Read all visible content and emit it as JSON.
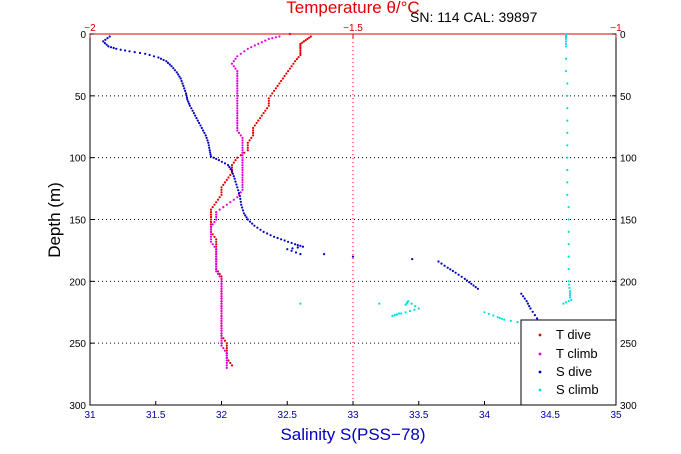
{
  "chart_data": {
    "type": "scatter",
    "title": "Temperature θ/°C",
    "subtitle": "SN: 114  CAL: 39897",
    "xlabel": "Salinity S(PSS−78)",
    "ylabel": "Depth (m)",
    "xlim": [
      31,
      35
    ],
    "x2lim": [
      -2,
      -1
    ],
    "ylim": [
      300,
      0
    ],
    "xticks": [
      31,
      31.5,
      32,
      32.5,
      33,
      33.5,
      34,
      34.5,
      35
    ],
    "xtick_labels": [
      "31",
      "31.5",
      "32",
      "32.5",
      "33",
      "33.5",
      "34",
      "34.5",
      "35"
    ],
    "x2ticks": [
      -2,
      -1.5,
      -1
    ],
    "x2tick_labels": [
      "−2",
      "−1.5",
      "−1"
    ],
    "yticks": [
      0,
      50,
      100,
      150,
      200,
      250,
      300
    ],
    "ytick_labels": [
      "0",
      "50",
      "100",
      "150",
      "200",
      "250",
      "300"
    ],
    "grid": "dotted at x=33 and y ticks",
    "legend_position": "bottom-right",
    "series": [
      {
        "name": "T dive",
        "axis": "temperature",
        "color": "#e00000",
        "points": [
          [
            -1.62,
            0
          ],
          [
            -1.58,
            2
          ],
          [
            -1.59,
            5
          ],
          [
            -1.6,
            8
          ],
          [
            -1.6,
            12
          ],
          [
            -1.6,
            17
          ],
          [
            -1.61,
            22
          ],
          [
            -1.62,
            28
          ],
          [
            -1.63,
            34
          ],
          [
            -1.64,
            40
          ],
          [
            -1.65,
            46
          ],
          [
            -1.66,
            52
          ],
          [
            -1.66,
            58
          ],
          [
            -1.67,
            64
          ],
          [
            -1.68,
            70
          ],
          [
            -1.69,
            76
          ],
          [
            -1.69,
            82
          ],
          [
            -1.7,
            88
          ],
          [
            -1.7,
            94
          ],
          [
            -1.72,
            100
          ],
          [
            -1.73,
            106
          ],
          [
            -1.73,
            112
          ],
          [
            -1.74,
            118
          ],
          [
            -1.75,
            124
          ],
          [
            -1.75,
            130
          ],
          [
            -1.76,
            136
          ],
          [
            -1.77,
            142
          ],
          [
            -1.77,
            148
          ],
          [
            -1.77,
            154
          ],
          [
            -1.77,
            160
          ],
          [
            -1.76,
            166
          ],
          [
            -1.76,
            172
          ],
          [
            -1.76,
            178
          ],
          [
            -1.76,
            184
          ],
          [
            -1.76,
            190
          ],
          [
            -1.75,
            196
          ],
          [
            -1.75,
            202
          ],
          [
            -1.75,
            208
          ],
          [
            -1.75,
            214
          ],
          [
            -1.75,
            220
          ],
          [
            -1.75,
            226
          ],
          [
            -1.75,
            232
          ],
          [
            -1.75,
            238
          ],
          [
            -1.75,
            244
          ],
          [
            -1.74,
            250
          ],
          [
            -1.74,
            256
          ],
          [
            -1.74,
            262
          ],
          [
            -1.73,
            268
          ]
        ]
      },
      {
        "name": "T climb",
        "axis": "temperature",
        "color": "#e000e0",
        "points": [
          [
            -1.74,
            270
          ],
          [
            -1.74,
            264
          ],
          [
            -1.74,
            258
          ],
          [
            -1.75,
            252
          ],
          [
            -1.75,
            246
          ],
          [
            -1.75,
            240
          ],
          [
            -1.75,
            234
          ],
          [
            -1.75,
            228
          ],
          [
            -1.75,
            222
          ],
          [
            -1.75,
            216
          ],
          [
            -1.75,
            210
          ],
          [
            -1.75,
            204
          ],
          [
            -1.75,
            198
          ],
          [
            -1.76,
            192
          ],
          [
            -1.76,
            186
          ],
          [
            -1.76,
            180
          ],
          [
            -1.76,
            174
          ],
          [
            -1.77,
            168
          ],
          [
            -1.77,
            162
          ],
          [
            -1.77,
            156
          ],
          [
            -1.76,
            150
          ],
          [
            -1.76,
            144
          ],
          [
            -1.74,
            138
          ],
          [
            -1.72,
            132
          ],
          [
            -1.71,
            126
          ],
          [
            -1.71,
            120
          ],
          [
            -1.71,
            114
          ],
          [
            -1.71,
            108
          ],
          [
            -1.71,
            102
          ],
          [
            -1.71,
            96
          ],
          [
            -1.71,
            90
          ],
          [
            -1.71,
            84
          ],
          [
            -1.72,
            78
          ],
          [
            -1.72,
            72
          ],
          [
            -1.72,
            66
          ],
          [
            -1.72,
            60
          ],
          [
            -1.72,
            54
          ],
          [
            -1.72,
            48
          ],
          [
            -1.72,
            42
          ],
          [
            -1.72,
            36
          ],
          [
            -1.72,
            30
          ],
          [
            -1.73,
            24
          ],
          [
            -1.72,
            18
          ],
          [
            -1.7,
            12
          ],
          [
            -1.68,
            8
          ],
          [
            -1.66,
            4
          ],
          [
            -1.64,
            2
          ]
        ]
      },
      {
        "name": "S dive",
        "axis": "salinity",
        "color": "#0000c0",
        "points": [
          [
            31.15,
            2
          ],
          [
            31.1,
            6
          ],
          [
            31.14,
            10
          ],
          [
            31.2,
            12
          ],
          [
            31.3,
            14
          ],
          [
            31.42,
            16
          ],
          [
            31.52,
            19
          ],
          [
            31.58,
            22
          ],
          [
            31.62,
            26
          ],
          [
            31.66,
            31
          ],
          [
            31.69,
            36
          ],
          [
            31.71,
            42
          ],
          [
            31.73,
            48
          ],
          [
            31.74,
            53
          ],
          [
            31.76,
            58
          ],
          [
            31.79,
            64
          ],
          [
            31.82,
            70
          ],
          [
            31.85,
            76
          ],
          [
            31.88,
            82
          ],
          [
            31.9,
            88
          ],
          [
            31.91,
            94
          ],
          [
            31.92,
            99
          ],
          [
            31.98,
            102
          ],
          [
            32.05,
            106
          ],
          [
            32.08,
            111
          ],
          [
            32.1,
            117
          ],
          [
            32.12,
            124
          ],
          [
            32.14,
            131
          ],
          [
            32.15,
            138
          ],
          [
            32.17,
            145
          ],
          [
            32.2,
            150
          ],
          [
            32.25,
            155
          ],
          [
            32.32,
            160
          ],
          [
            32.4,
            164
          ],
          [
            32.48,
            167
          ],
          [
            32.56,
            170
          ],
          [
            32.62,
            172
          ],
          [
            32.5,
            174
          ],
          [
            32.6,
            178
          ],
          [
            32.78,
            178
          ],
          [
            33.0,
            180
          ],
          [
            33.45,
            182
          ],
          [
            33.65,
            184
          ],
          [
            33.72,
            189
          ],
          [
            33.78,
            193
          ],
          [
            33.85,
            198
          ],
          [
            33.9,
            202
          ],
          [
            33.95,
            206
          ],
          [
            34.28,
            210
          ],
          [
            34.32,
            216
          ],
          [
            34.35,
            222
          ],
          [
            34.4,
            230
          ],
          [
            34.45,
            236
          ]
        ]
      },
      {
        "name": "S climb",
        "axis": "salinity",
        "color": "#00e0e0",
        "points": [
          [
            34.65,
            213
          ],
          [
            34.65,
            208
          ],
          [
            34.64,
            200
          ],
          [
            34.64,
            190
          ],
          [
            34.64,
            180
          ],
          [
            34.64,
            170
          ],
          [
            34.64,
            160
          ],
          [
            34.64,
            150
          ],
          [
            34.64,
            140
          ],
          [
            34.63,
            130
          ],
          [
            34.63,
            120
          ],
          [
            34.63,
            110
          ],
          [
            34.63,
            100
          ],
          [
            34.63,
            90
          ],
          [
            34.63,
            80
          ],
          [
            34.63,
            70
          ],
          [
            34.63,
            60
          ],
          [
            34.63,
            50
          ],
          [
            34.63,
            40
          ],
          [
            34.62,
            30
          ],
          [
            34.62,
            20
          ],
          [
            34.62,
            10
          ],
          [
            34.62,
            4
          ],
          [
            34.62,
            0
          ],
          [
            34.66,
            215
          ],
          [
            34.6,
            218
          ],
          [
            32.6,
            218
          ],
          [
            33.2,
            218
          ],
          [
            33.4,
            219
          ],
          [
            33.42,
            216
          ],
          [
            33.5,
            222
          ],
          [
            33.4,
            225
          ],
          [
            33.3,
            228
          ],
          [
            33.35,
            226
          ],
          [
            34.0,
            225
          ],
          [
            34.1,
            229
          ],
          [
            34.15,
            231
          ],
          [
            34.3,
            234
          ],
          [
            34.38,
            236
          ]
        ]
      }
    ]
  }
}
